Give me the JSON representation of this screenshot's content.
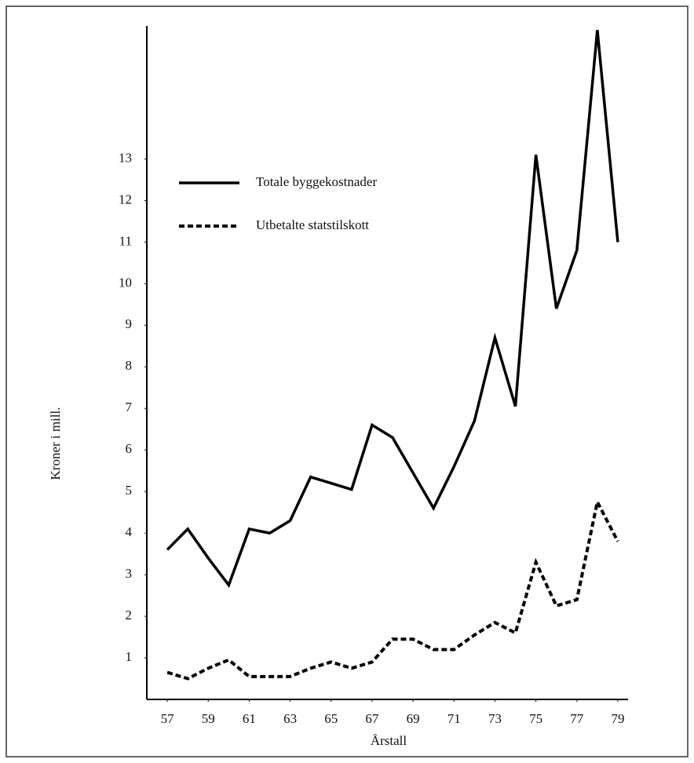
{
  "chart_data": {
    "type": "line",
    "xlabel": "Årstall",
    "ylabel": "Kroner i mill.",
    "x": [
      57,
      58,
      59,
      60,
      61,
      62,
      63,
      64,
      65,
      66,
      67,
      68,
      69,
      70,
      71,
      72,
      73,
      74,
      75,
      76,
      77,
      78,
      79
    ],
    "series": [
      {
        "name": "Totale byggekostnader",
        "color": "#000000",
        "line_style": "solid",
        "values": [
          3.6,
          4.1,
          3.4,
          2.75,
          4.1,
          4.0,
          4.3,
          5.35,
          5.2,
          5.05,
          6.6,
          6.3,
          5.45,
          4.6,
          5.6,
          6.7,
          8.7,
          7.05,
          13.1,
          9.4,
          10.8,
          16.1,
          11.0
        ]
      },
      {
        "name": "Utbetalte statstilskott",
        "color": "#000000",
        "line_style": "dashed",
        "values": [
          0.65,
          0.5,
          0.75,
          0.95,
          0.55,
          0.55,
          0.55,
          0.75,
          0.9,
          0.75,
          0.9,
          1.45,
          1.45,
          1.2,
          1.2,
          1.55,
          1.85,
          1.6,
          3.3,
          2.25,
          2.4,
          4.75,
          3.8
        ]
      }
    ],
    "xlim": [
      56,
      79.5
    ],
    "ylim": [
      0,
      16.2
    ],
    "xticks": [
      57,
      59,
      61,
      63,
      65,
      67,
      69,
      71,
      73,
      75,
      77,
      79
    ],
    "yticks": [
      1,
      2,
      3,
      4,
      5,
      6,
      7,
      8,
      9,
      10,
      11,
      12,
      13
    ],
    "grid": false,
    "legend": "upper left"
  }
}
